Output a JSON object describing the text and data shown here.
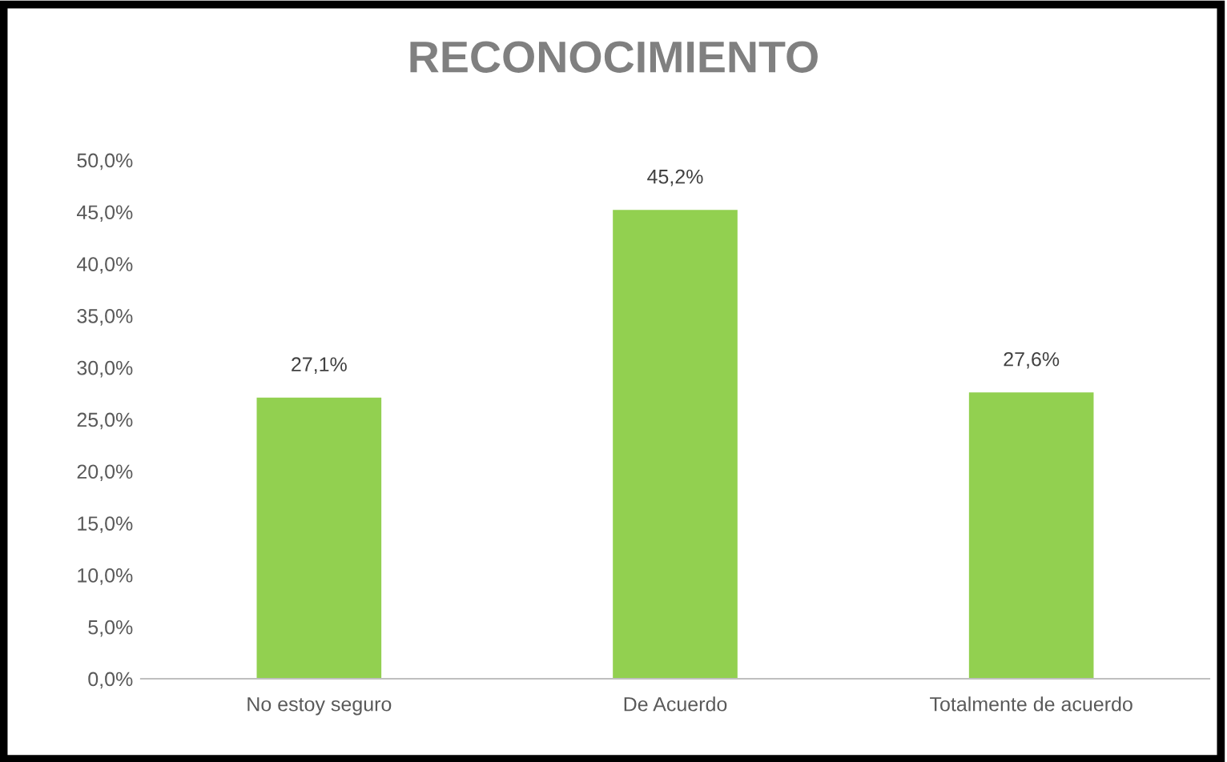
{
  "chart_data": {
    "type": "bar",
    "title": "RECONOCIMIENTO",
    "categories": [
      "No estoy seguro",
      "De Acuerdo",
      "Totalmente de acuerdo"
    ],
    "values": [
      27.1,
      45.2,
      27.6
    ],
    "value_labels": [
      "27,1%",
      "45,2%",
      "27,6%"
    ],
    "color": "#92d050",
    "ylim": [
      0,
      50
    ],
    "yticks": [
      {
        "value": 0,
        "label": "0,0%"
      },
      {
        "value": 5,
        "label": "5,0%"
      },
      {
        "value": 10,
        "label": "10,0%"
      },
      {
        "value": 15,
        "label": "15,0%"
      },
      {
        "value": 20,
        "label": "20,0%"
      },
      {
        "value": 25,
        "label": "25,0%"
      },
      {
        "value": 30,
        "label": "30,0%"
      },
      {
        "value": 35,
        "label": "35,0%"
      },
      {
        "value": 40,
        "label": "40,0%"
      },
      {
        "value": 45,
        "label": "45,0%"
      },
      {
        "value": 50,
        "label": "50,0%"
      }
    ],
    "grid": false,
    "legend": false
  }
}
